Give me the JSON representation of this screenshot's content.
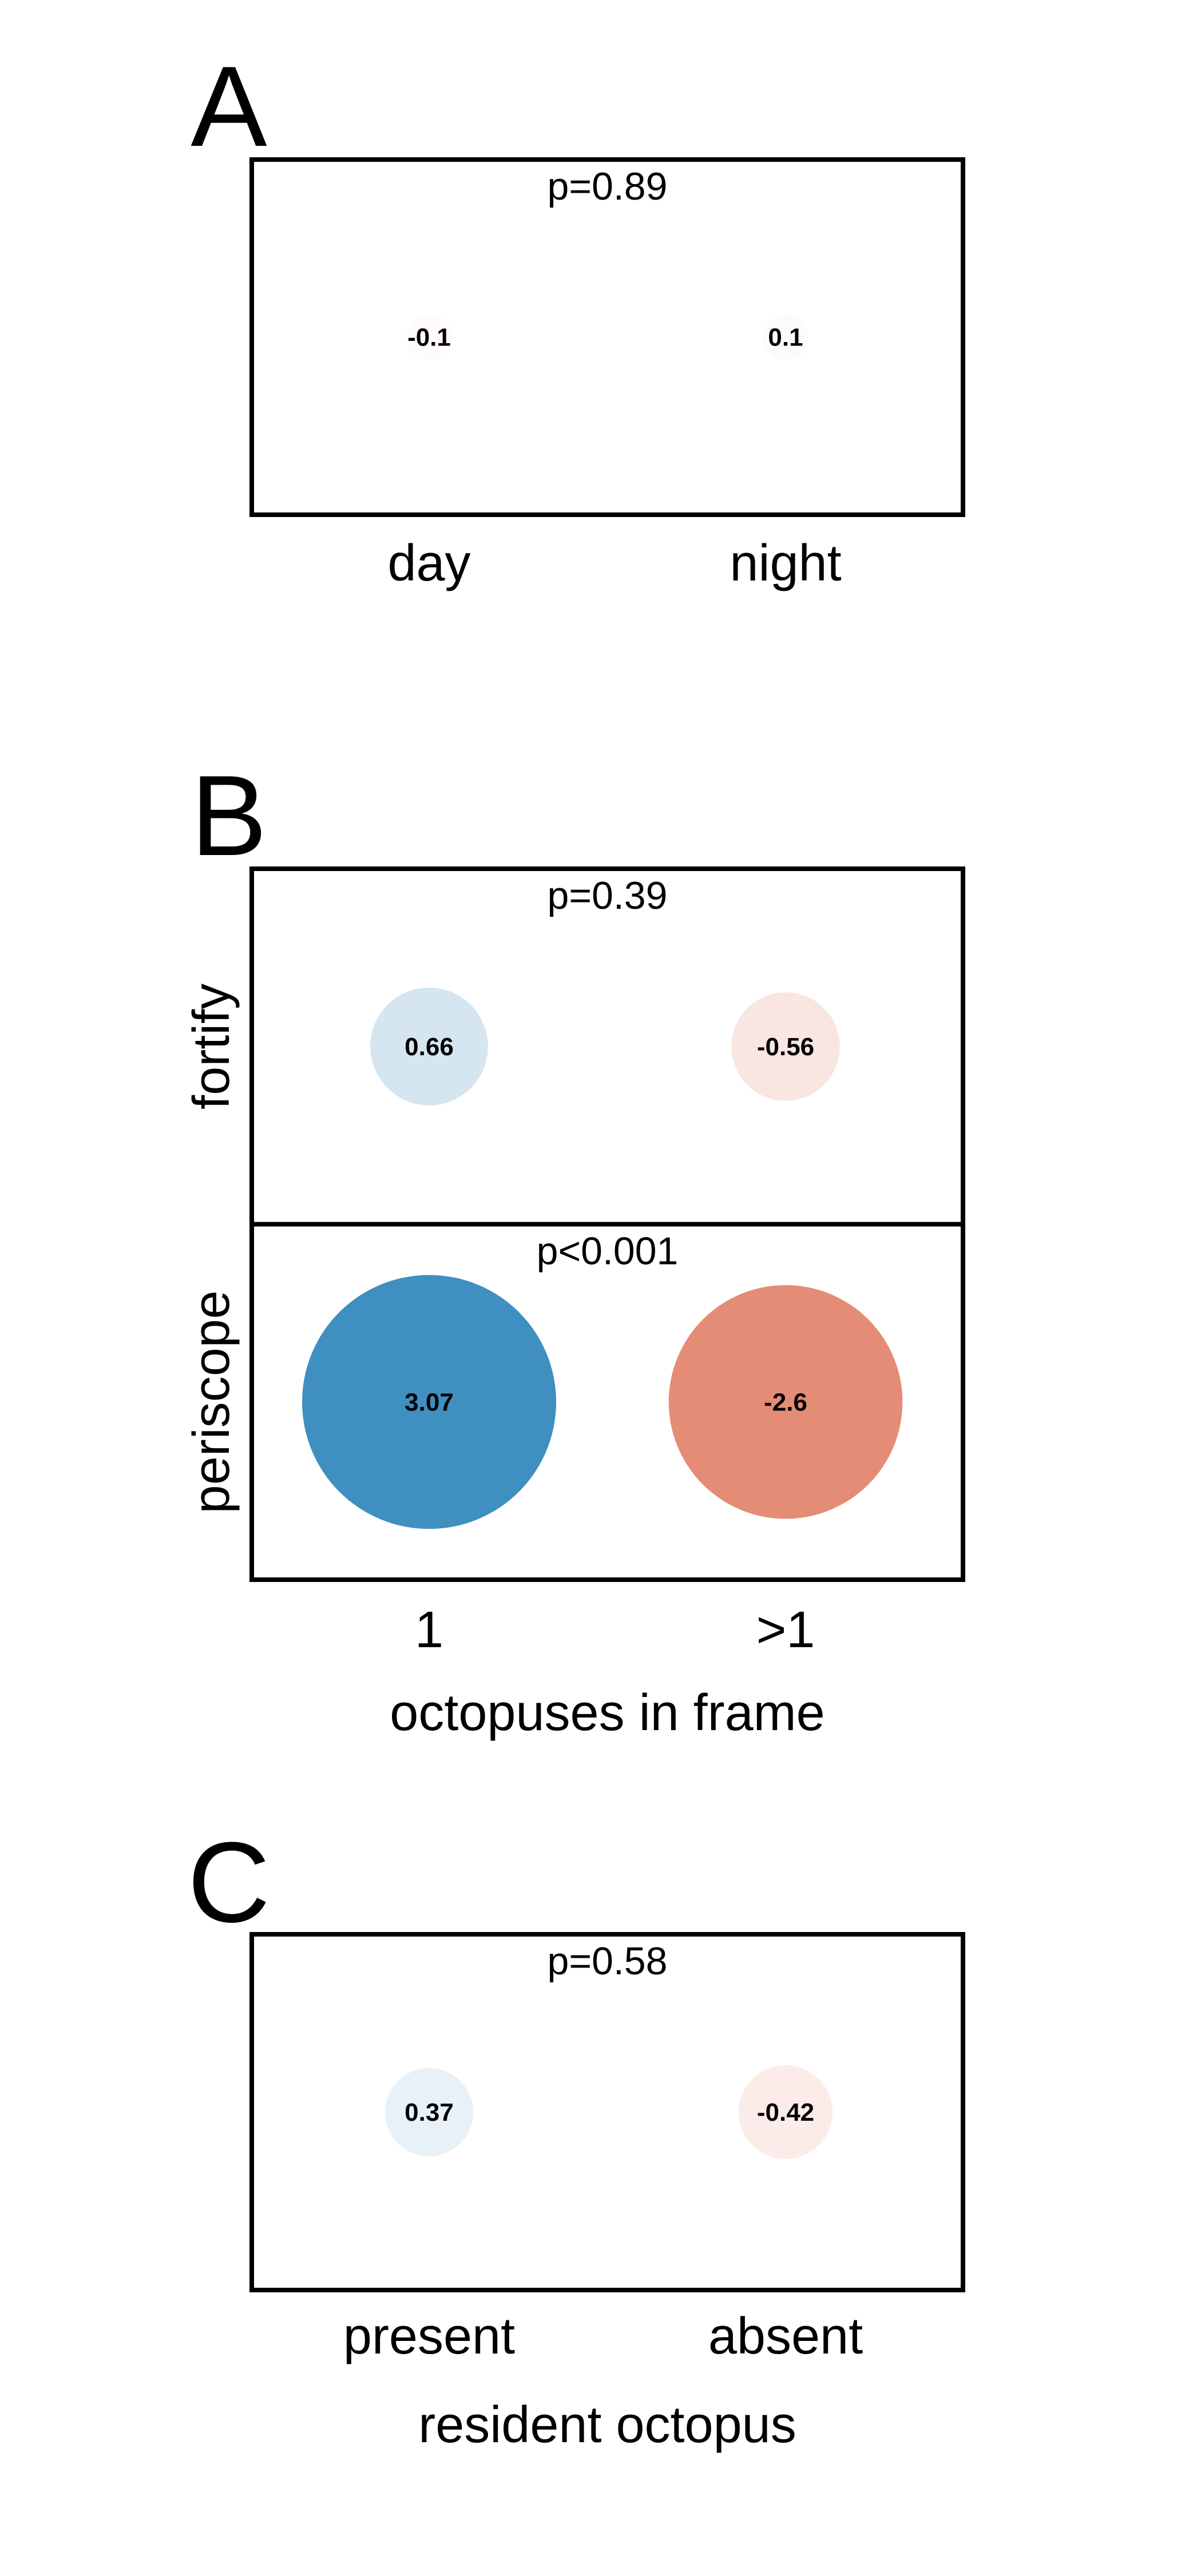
{
  "chart_data": [
    {
      "type": "bubble",
      "panel_label": "A",
      "categories": [
        "day",
        "night"
      ],
      "xlabel": "",
      "rows": [
        {
          "ylabel": "",
          "p_value": "p=0.89",
          "values": [
            -0.1,
            0.1
          ],
          "value_labels": [
            "-0.1",
            "0.1"
          ]
        }
      ],
      "colors": {
        "positive": "#3f8fc0",
        "negative": "#e07a5f"
      },
      "grid": false
    },
    {
      "type": "bubble",
      "panel_label": "B",
      "categories": [
        "1",
        ">1"
      ],
      "xlabel": "octopuses in frame",
      "rows": [
        {
          "ylabel": "fortify",
          "p_value": "p=0.39",
          "values": [
            0.66,
            -0.56
          ],
          "value_labels": [
            "0.66",
            "-0.56"
          ]
        },
        {
          "ylabel": "periscope",
          "p_value": "p<0.001",
          "values": [
            3.07,
            -2.6
          ],
          "value_labels": [
            "3.07",
            "-2.6"
          ]
        }
      ],
      "colors": {
        "positive": "#3f8fc0",
        "negative": "#e07a5f"
      },
      "grid": false
    },
    {
      "type": "bubble",
      "panel_label": "C",
      "categories": [
        "present",
        "absent"
      ],
      "xlabel": "resident octopus",
      "rows": [
        {
          "ylabel": "",
          "p_value": "p=0.58",
          "values": [
            0.37,
            -0.42
          ],
          "value_labels": [
            "0.37",
            "-0.42"
          ]
        }
      ],
      "colors": {
        "positive": "#3f8fc0",
        "negative": "#e07a5f"
      },
      "grid": false
    }
  ]
}
